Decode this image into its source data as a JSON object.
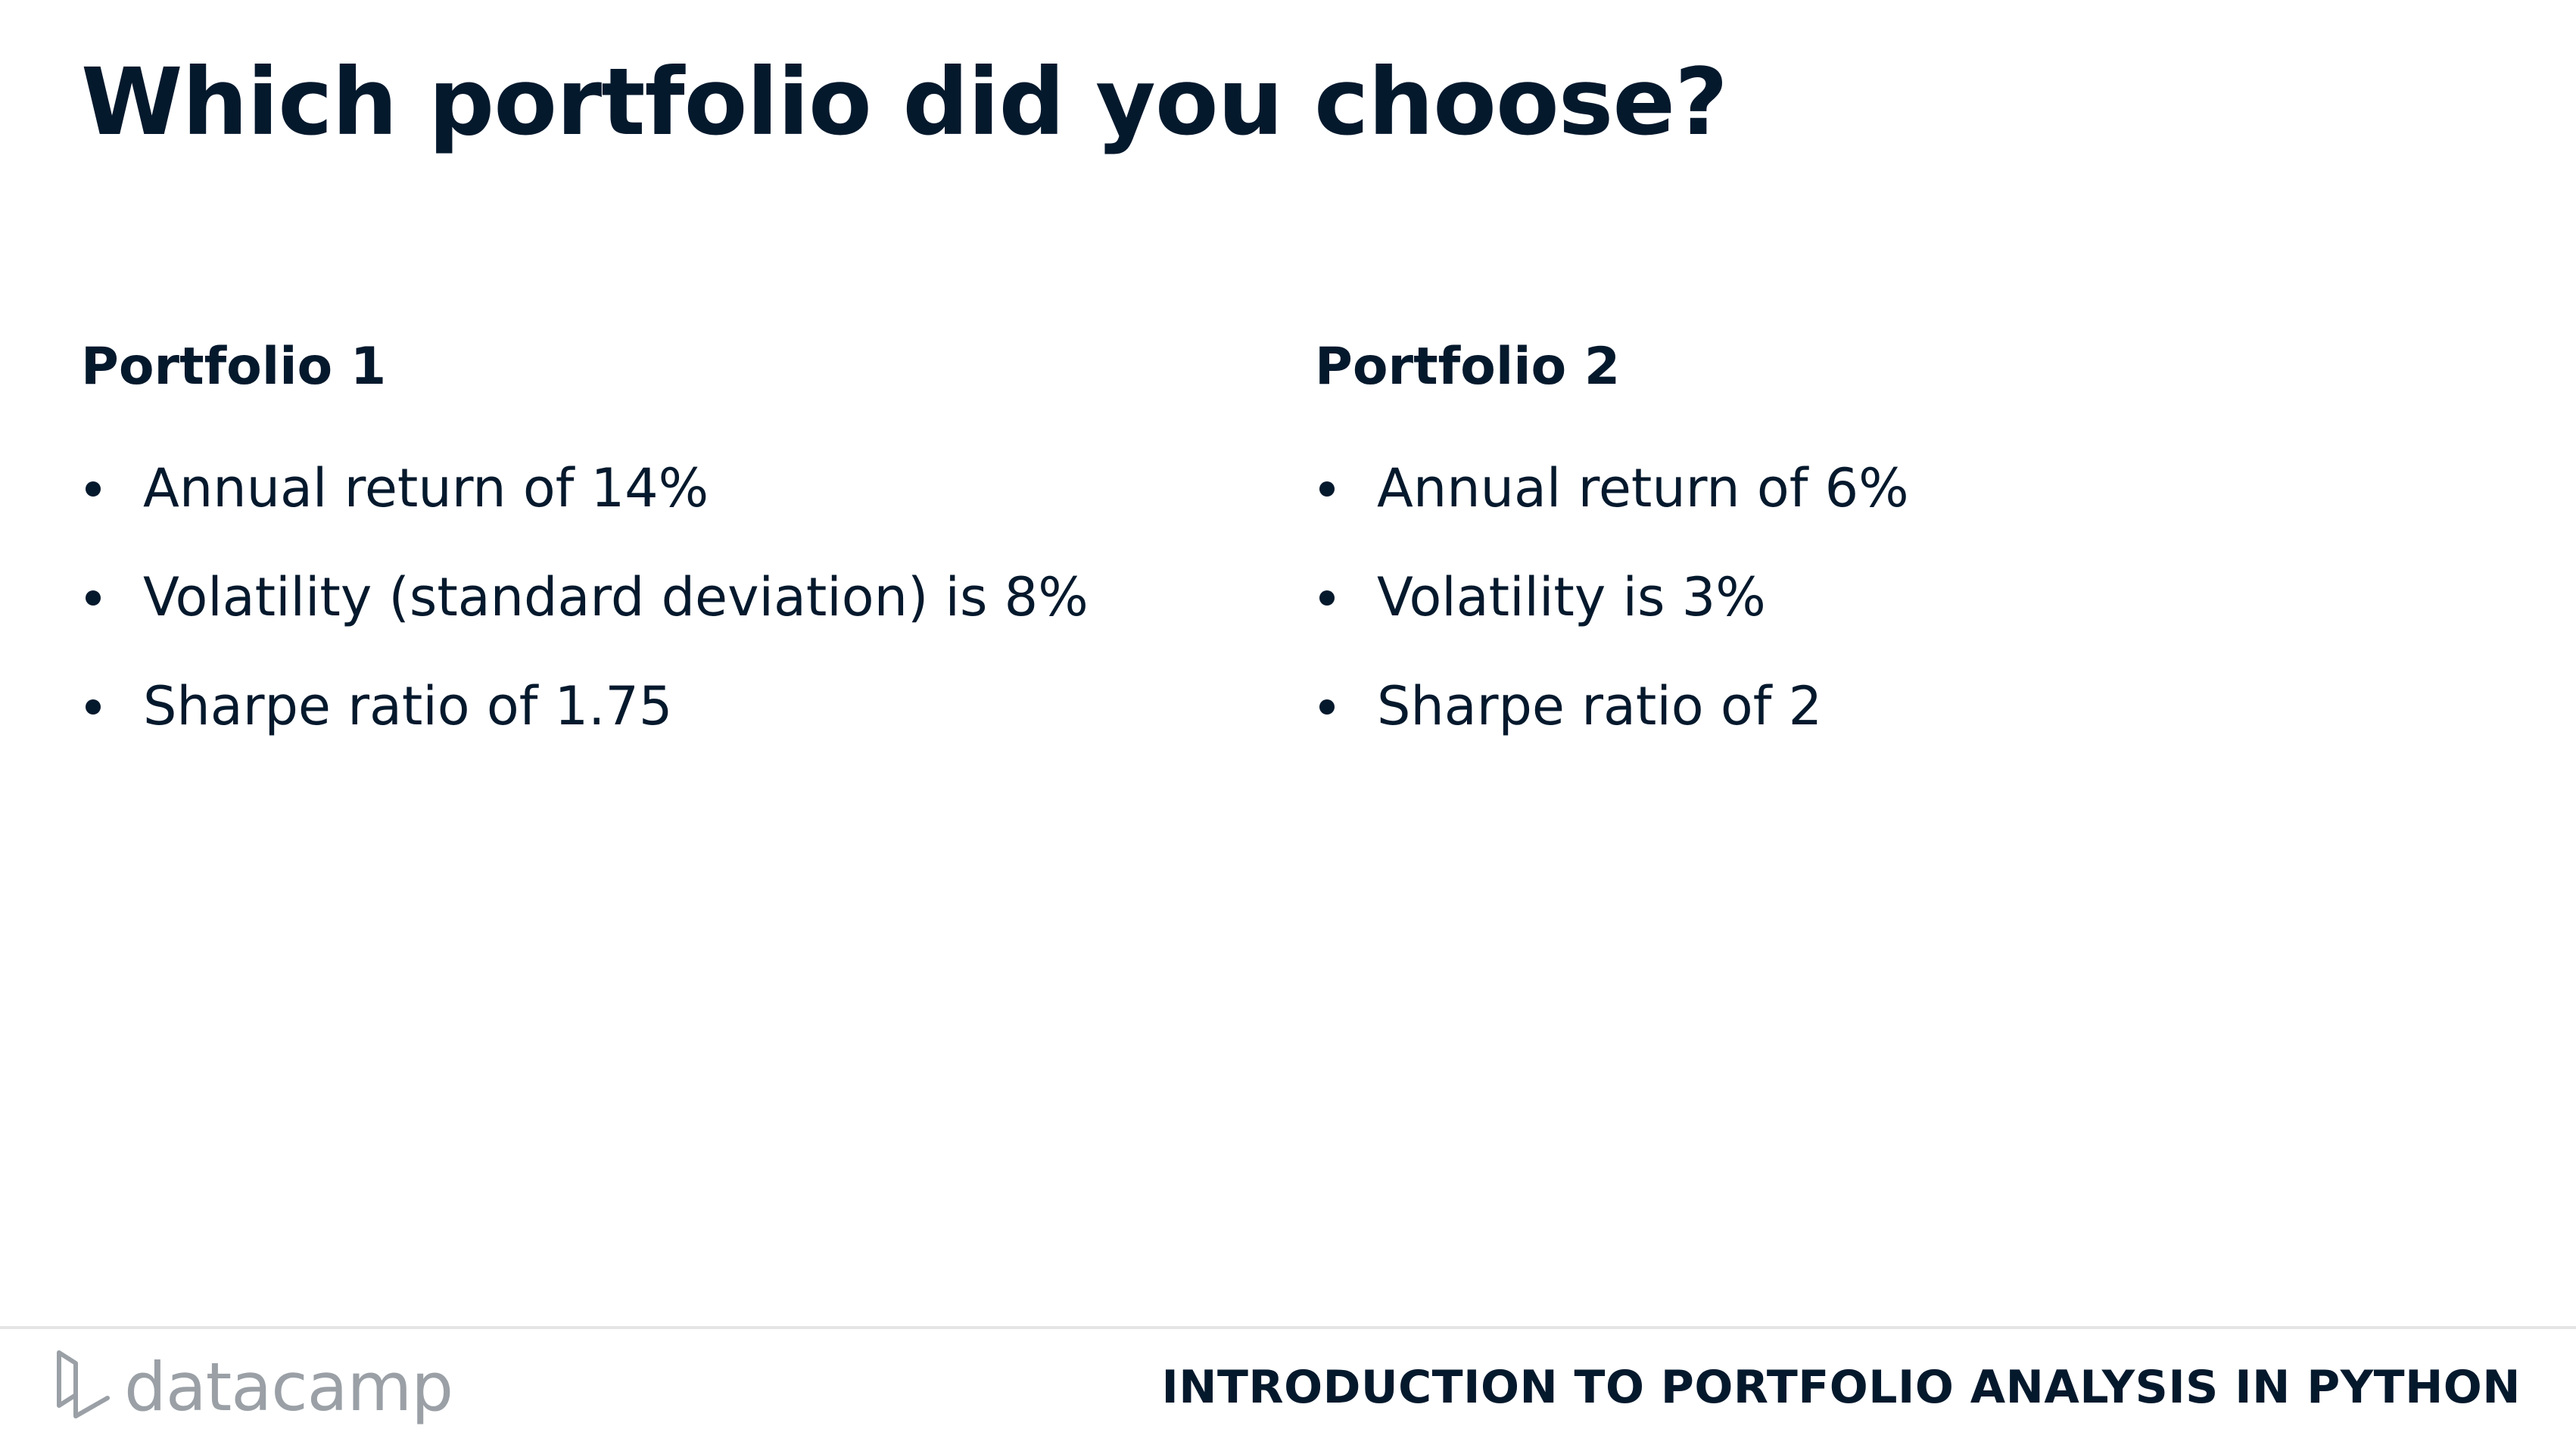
{
  "slide": {
    "title": "Which portfolio did you choose?"
  },
  "portfolios": [
    {
      "heading": "Portfolio 1",
      "bullets": [
        "Annual return of 14%",
        "Volatility (standard deviation) is 8%",
        "Sharpe ratio of 1.75"
      ]
    },
    {
      "heading": "Portfolio 2",
      "bullets": [
        "Annual return of 6%",
        "Volatility is 3%",
        "Sharpe ratio of 2"
      ]
    }
  ],
  "footer": {
    "logo_text": "datacamp",
    "course_title": "INTRODUCTION TO PORTFOLIO ANALYSIS IN PYTHON"
  },
  "colors": {
    "text": "#05192d",
    "logo": "#9aa0a6",
    "divider": "#e5e5e5"
  },
  "icons": {
    "logo": "datacamp-logo-icon",
    "bullet": "bullet-dot-icon"
  }
}
